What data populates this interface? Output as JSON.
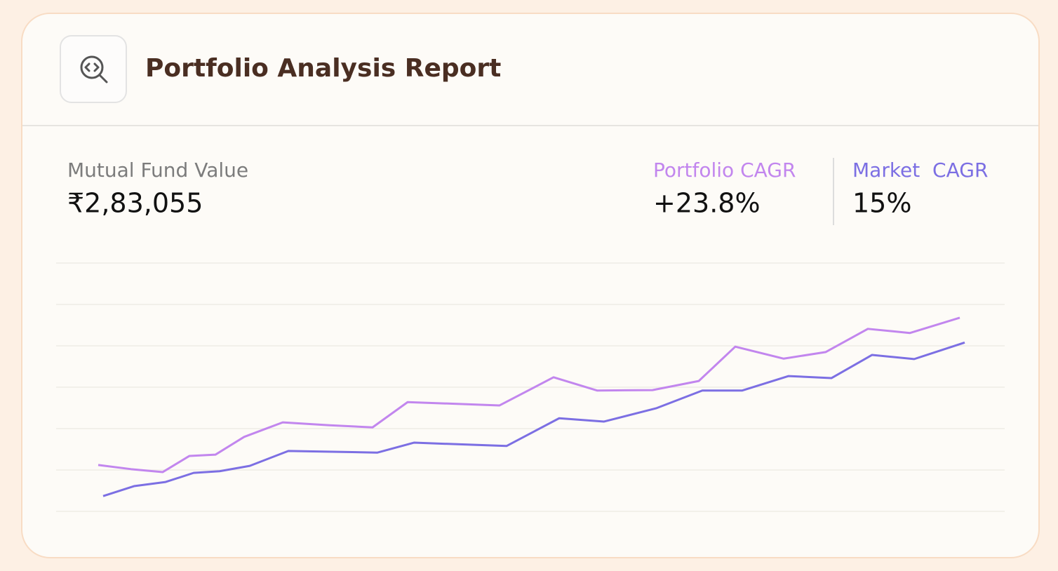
{
  "header": {
    "title": "Portfolio Analysis Report"
  },
  "stats": [
    {
      "label": "Mutual Fund Value",
      "value": "₹2,83,055"
    },
    {
      "label": "Portfolio CAGR",
      "value": "+23.8%",
      "color": "#c286ee"
    },
    {
      "label": "Market  CAGR",
      "value": "15%",
      "color": "#7c6fe3"
    }
  ],
  "chart_data": {
    "type": "line",
    "xlim": [
      0,
      1352
    ],
    "ylim": [
      0,
      6
    ],
    "yticks": [
      0,
      1,
      2,
      3,
      4,
      5,
      6
    ],
    "grid": true,
    "series": [
      {
        "color": "#c286ee",
        "x": [
          60,
          107,
          152,
          190,
          227,
          268,
          323,
          390,
          451,
          501,
          632,
          709,
          771,
          850,
          916,
          968,
          1037,
          1097,
          1157,
          1217,
          1288
        ],
        "values": [
          1.12,
          1.02,
          0.95,
          1.34,
          1.37,
          1.8,
          2.15,
          2.08,
          2.03,
          2.64,
          2.56,
          3.24,
          2.92,
          2.93,
          3.15,
          3.98,
          3.69,
          3.85,
          4.41,
          4.31,
          4.68
        ]
      },
      {
        "color": "#7c6fe3",
        "x": [
          67,
          111,
          156,
          196,
          233,
          276,
          331,
          458,
          510,
          642,
          717,
          781,
          855,
          921,
          978,
          1044,
          1105,
          1163,
          1223,
          1295
        ],
        "values": [
          0.37,
          0.61,
          0.71,
          0.93,
          0.97,
          1.1,
          1.46,
          1.42,
          1.66,
          1.58,
          2.25,
          2.17,
          2.49,
          2.92,
          2.92,
          3.27,
          3.22,
          3.78,
          3.68,
          4.08
        ]
      }
    ]
  }
}
